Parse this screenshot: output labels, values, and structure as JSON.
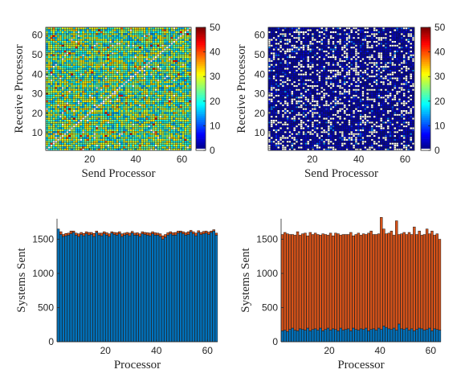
{
  "chart_data": [
    {
      "type": "heatmap",
      "panel": "top-left",
      "xlabel": "Send Processor",
      "ylabel": "Receive Processor",
      "xlim": [
        1,
        64
      ],
      "ylim": [
        1,
        64
      ],
      "xticks": [
        20,
        40,
        60
      ],
      "yticks": [
        10,
        20,
        30,
        40,
        50,
        60
      ],
      "description_pattern": "dense, mostly 15-35, empty diagonal",
      "value_range": [
        0,
        50
      ],
      "colorbar": {
        "ticks": [
          0,
          10,
          20,
          30,
          40,
          50
        ],
        "colormap": "jet",
        "min_color": "#ffffff"
      }
    },
    {
      "type": "heatmap",
      "panel": "top-right",
      "xlabel": "Send Processor",
      "ylabel": "Receive Processor",
      "xlim": [
        1,
        64
      ],
      "ylim": [
        1,
        64
      ],
      "xticks": [
        20,
        40,
        60
      ],
      "yticks": [
        10,
        20,
        30,
        40,
        50,
        60
      ],
      "value_range": [
        0,
        50
      ],
      "colorbar": {
        "ticks": [
          0,
          10,
          20,
          30,
          40,
          50
        ],
        "colormap": "jet",
        "min_color": "#ffffff"
      }
    },
    {
      "type": "bar",
      "panel": "bottom-left",
      "xlabel": "Processor",
      "ylabel": "Systems Sent",
      "xlim": [
        1,
        64
      ],
      "ylim": [
        0,
        1800
      ],
      "xticks": [
        20,
        40,
        60
      ],
      "yticks": [
        0,
        500,
        1000,
        1500
      ],
      "series": [
        {
          "color": "#0072BD",
          "values": [
            1650,
            1570,
            1540,
            1550,
            1560,
            1580,
            1600,
            1560,
            1540,
            1570,
            1550,
            1580,
            1560,
            1570,
            1540,
            1600,
            1560,
            1550,
            1580,
            1560,
            1540,
            1590,
            1570,
            1560,
            1580,
            1540,
            1560,
            1570,
            1550,
            1590,
            1560,
            1560,
            1540,
            1580,
            1570,
            1560,
            1550,
            1580,
            1560,
            1560,
            1540,
            1500,
            1530,
            1560,
            1580,
            1560,
            1560,
            1590,
            1600,
            1580,
            1560,
            1570,
            1610,
            1580,
            1550,
            1600,
            1570,
            1580,
            1590,
            1570,
            1600,
            1620,
            1560
          ]
        },
        {
          "color": "#D95319",
          "values": [
            0,
            40,
            30,
            35,
            30,
            40,
            20,
            30,
            40,
            30,
            35,
            30,
            40,
            30,
            45,
            20,
            30,
            40,
            30,
            35,
            40,
            20,
            30,
            35,
            30,
            40,
            30,
            30,
            40,
            25,
            30,
            35,
            40,
            30,
            30,
            35,
            40,
            30,
            35,
            30,
            40,
            50,
            40,
            35,
            30,
            35,
            40,
            30,
            20,
            30,
            35,
            40,
            20,
            30,
            40,
            25,
            30,
            35,
            30,
            35,
            20,
            20,
            30
          ]
        }
      ]
    },
    {
      "type": "bar",
      "panel": "bottom-right",
      "xlabel": "Processor",
      "ylabel": "Systems Sent",
      "xlim": [
        1,
        64
      ],
      "ylim": [
        0,
        1800
      ],
      "xticks": [
        20,
        40,
        60
      ],
      "yticks": [
        0,
        500,
        1000,
        1500
      ],
      "series": [
        {
          "color": "#0072BD",
          "values": [
            160,
            170,
            150,
            180,
            200,
            170,
            160,
            190,
            180,
            170,
            200,
            160,
            180,
            190,
            170,
            200,
            160,
            180,
            200,
            170,
            190,
            180,
            160,
            200,
            170,
            180,
            190,
            160,
            200,
            180,
            170,
            190,
            180,
            200,
            160,
            180,
            190,
            170,
            200,
            180,
            230,
            210,
            190,
            180,
            200,
            170,
            260,
            190,
            180,
            200,
            170,
            190,
            160,
            180,
            200,
            190,
            170,
            180,
            200,
            160,
            190,
            180,
            170
          ]
        },
        {
          "color": "#D95319",
          "values": [
            1410,
            1430,
            1430,
            1390,
            1370,
            1390,
            1450,
            1370,
            1400,
            1420,
            1350,
            1440,
            1390,
            1400,
            1400,
            1360,
            1420,
            1390,
            1360,
            1420,
            1360,
            1410,
            1420,
            1360,
            1400,
            1390,
            1380,
            1440,
            1350,
            1390,
            1420,
            1370,
            1400,
            1370,
            1430,
            1440,
            1380,
            1400,
            1380,
            1640,
            1420,
            1370,
            1400,
            1440,
            1360,
            1600,
            1310,
            1390,
            1420,
            1370,
            1430,
            1380,
            1520,
            1390,
            1420,
            1370,
            1400,
            1470,
            1380,
            1460,
            1370,
            1400,
            1330
          ]
        }
      ]
    }
  ]
}
